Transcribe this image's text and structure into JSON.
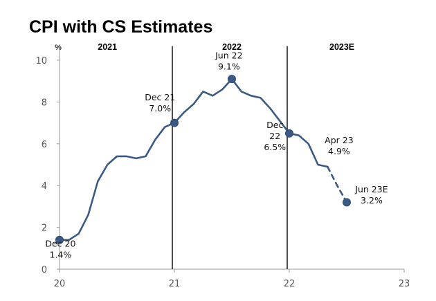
{
  "chart_data": {
    "type": "line",
    "title": "CPI with CS Estimates",
    "y_unit": "%",
    "ylim": [
      0,
      10
    ],
    "y_ticks": [
      "0",
      "2",
      "4",
      "6",
      "8",
      "10"
    ],
    "x_ticks": [
      {
        "label": "20",
        "t": 0
      },
      {
        "label": "21",
        "t": 12
      },
      {
        "label": "22",
        "t": 24
      },
      {
        "label": "23",
        "t": 36
      }
    ],
    "xlim": [
      0,
      36
    ],
    "period_labels": [
      {
        "label": "2021",
        "t": 5
      },
      {
        "label": "2022",
        "t": 18
      },
      {
        "label": "2023E",
        "t": 29.5
      }
    ],
    "dividers": [
      12,
      24
    ],
    "series": [
      {
        "style": "actual",
        "color": "#3a5a85",
        "points": [
          [
            0,
            1.4
          ],
          [
            1,
            1.4
          ],
          [
            2,
            1.7
          ],
          [
            3,
            2.6
          ],
          [
            4,
            4.2
          ],
          [
            5,
            5.0
          ],
          [
            6,
            5.4
          ],
          [
            7,
            5.4
          ],
          [
            8,
            5.3
          ],
          [
            9,
            5.4
          ],
          [
            10,
            6.2
          ],
          [
            11,
            6.8
          ],
          [
            12,
            7.0
          ],
          [
            13,
            7.5
          ],
          [
            14,
            7.9
          ],
          [
            15,
            8.5
          ],
          [
            16,
            8.3
          ],
          [
            17,
            8.6
          ],
          [
            18,
            9.1
          ],
          [
            19,
            8.5
          ],
          [
            20,
            8.3
          ],
          [
            21,
            8.2
          ],
          [
            22,
            7.7
          ],
          [
            23,
            7.1
          ],
          [
            24,
            6.5
          ],
          [
            25,
            6.4
          ],
          [
            26,
            6.0
          ],
          [
            27,
            5.0
          ],
          [
            28,
            4.9
          ]
        ]
      },
      {
        "style": "estimate",
        "color": "#3a5a85",
        "points": [
          [
            28,
            4.9
          ],
          [
            29,
            4.0
          ],
          [
            30,
            3.2
          ]
        ]
      }
    ],
    "markers": [
      {
        "t": 0,
        "v": 1.4
      },
      {
        "t": 12,
        "v": 7.0
      },
      {
        "t": 18,
        "v": 9.1
      },
      {
        "t": 24,
        "v": 6.5
      },
      {
        "t": 30,
        "v": 3.2
      }
    ],
    "annotations": [
      {
        "lines": [
          "Dec 20",
          "1.4%"
        ],
        "t": 0.1,
        "v": 0.55,
        "anchor": "middle"
      },
      {
        "lines": [
          "Dec 21",
          "7.0%"
        ],
        "t": 10.5,
        "v": 7.55,
        "anchor": "middle"
      },
      {
        "lines": [
          "Jun 22",
          "9.1%"
        ],
        "t": 17.7,
        "v": 9.55,
        "anchor": "middle"
      },
      {
        "lines": [
          "Dec",
          "22",
          "6.5%"
        ],
        "t": 22.5,
        "v": 5.7,
        "anchor": "middle"
      },
      {
        "lines": [
          "Apr 23",
          "4.9%"
        ],
        "t": 29.2,
        "v": 5.5,
        "anchor": "middle"
      },
      {
        "lines": [
          "Jun 23E",
          "3.2%"
        ],
        "t": 32.6,
        "v": 3.15,
        "anchor": "middle"
      }
    ]
  }
}
